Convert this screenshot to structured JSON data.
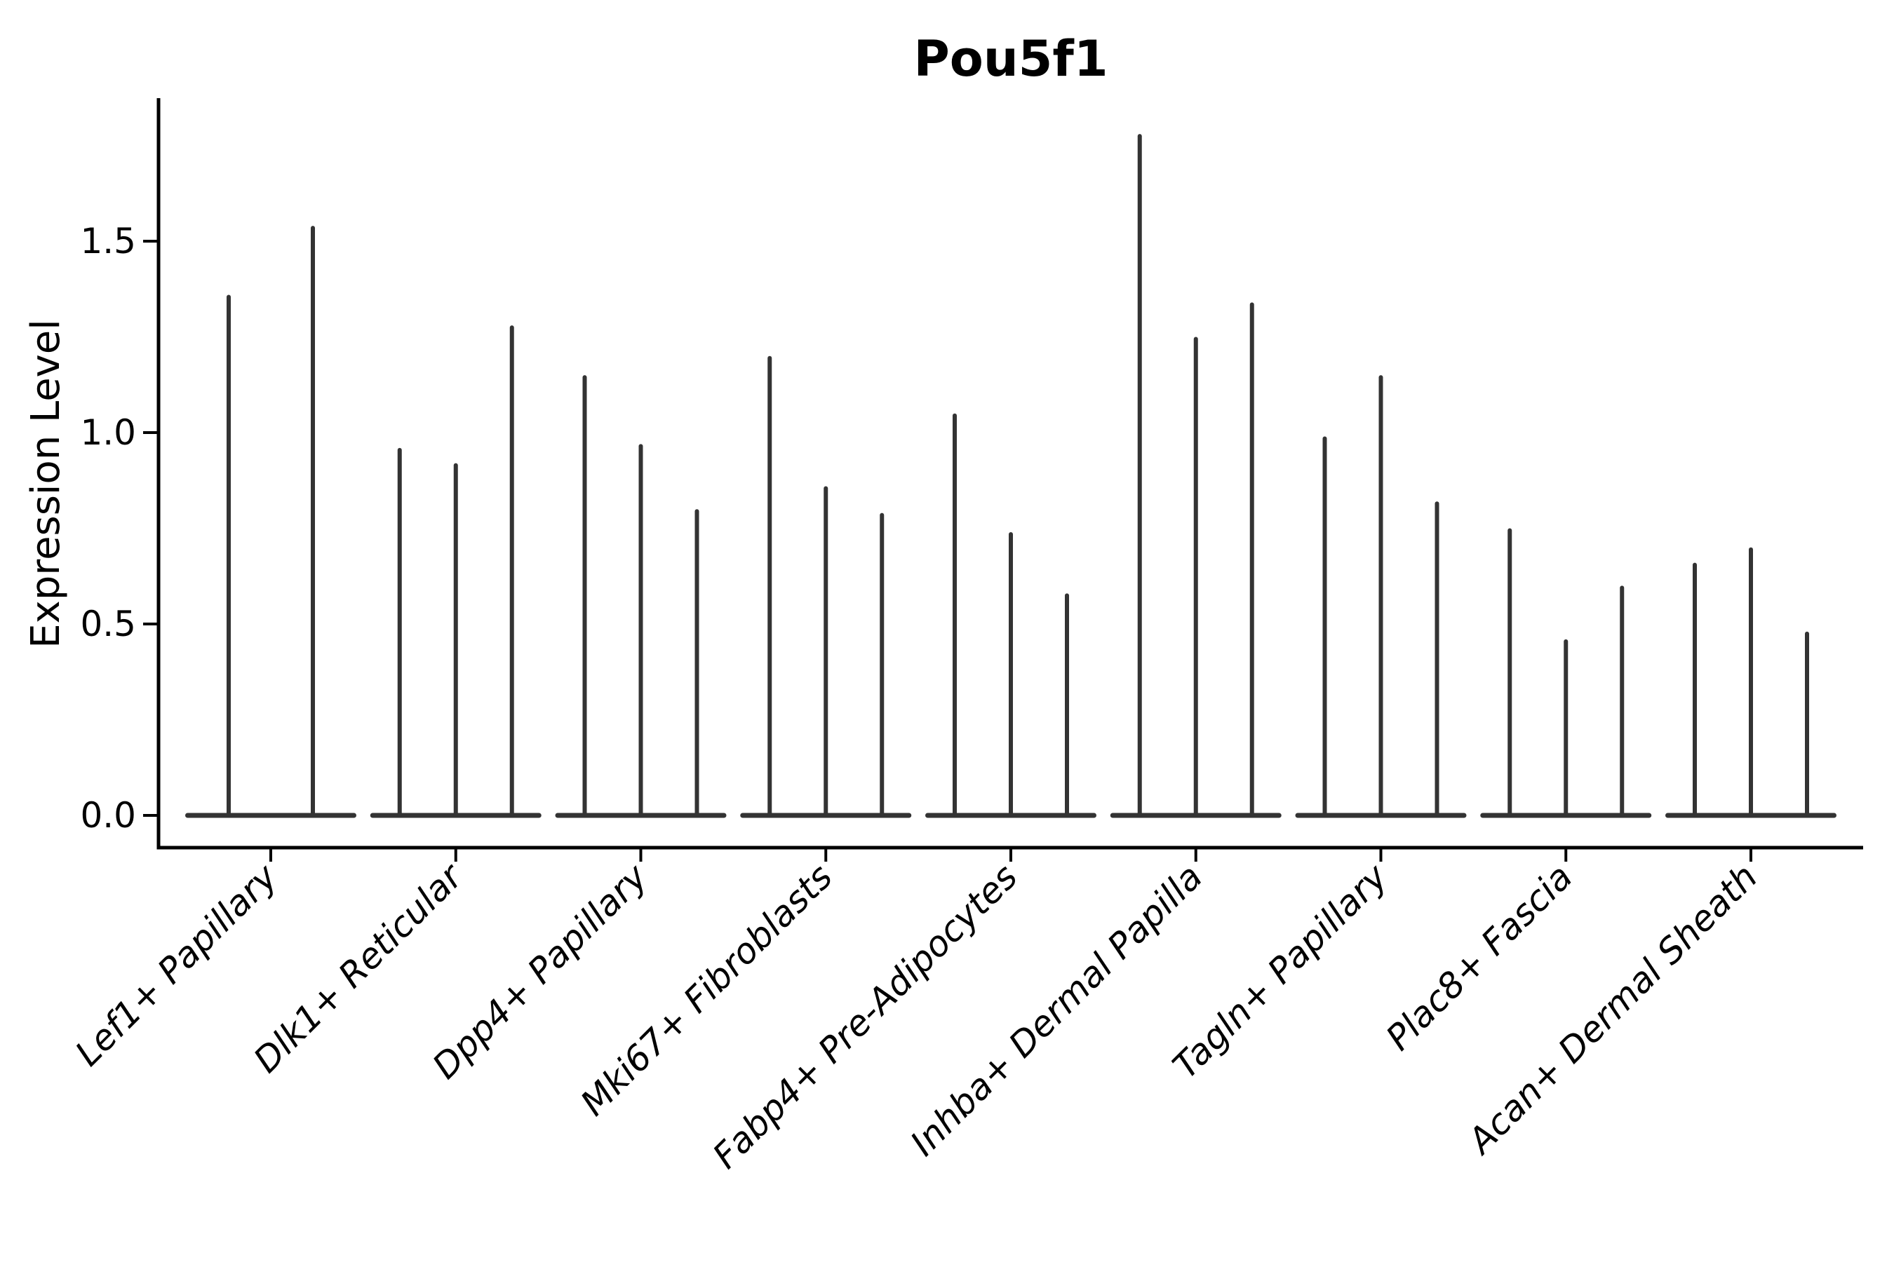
{
  "chart_data": {
    "type": "violin",
    "title": "Pou5f1",
    "ylabel": "Expression Level",
    "xlabel": "",
    "categories": [
      "Lef1+ Papillary",
      "Dlk1+ Reticular",
      "Dpp4+ Papillary",
      "Mki67+ Fibroblasts",
      "Fabp4+ Pre-Adipocytes",
      "Inhba+ Dermal Papilla",
      "Tagln+ Papillary",
      "Plac8+ Fascia",
      "Acan+ Dermal Sheath"
    ],
    "violin_peak_expression": [
      [
        1.36,
        1.54
      ],
      [
        0.96,
        0.92,
        1.28
      ],
      [
        1.15,
        0.97,
        0.8
      ],
      [
        1.2,
        0.86,
        0.79
      ],
      [
        1.05,
        0.74,
        0.58
      ],
      [
        1.78,
        1.25,
        1.34
      ],
      [
        0.99,
        1.15,
        0.82
      ],
      [
        0.75,
        0.46,
        0.6
      ],
      [
        0.66,
        0.7,
        0.48
      ]
    ],
    "baseline_value": 0.0,
    "yticks": [
      {
        "label": "0.0",
        "value": 0.0
      },
      {
        "label": "0.5",
        "value": 0.5
      },
      {
        "label": "1.0",
        "value": 1.0
      },
      {
        "label": "1.5",
        "value": 1.5
      }
    ],
    "ylim": [
      -0.08,
      1.87
    ],
    "grid": false,
    "legend": "none",
    "styles": {
      "violin_color": "#333333",
      "axis_color": "#000000",
      "text_color": "#000000",
      "background": "#ffffff"
    }
  }
}
